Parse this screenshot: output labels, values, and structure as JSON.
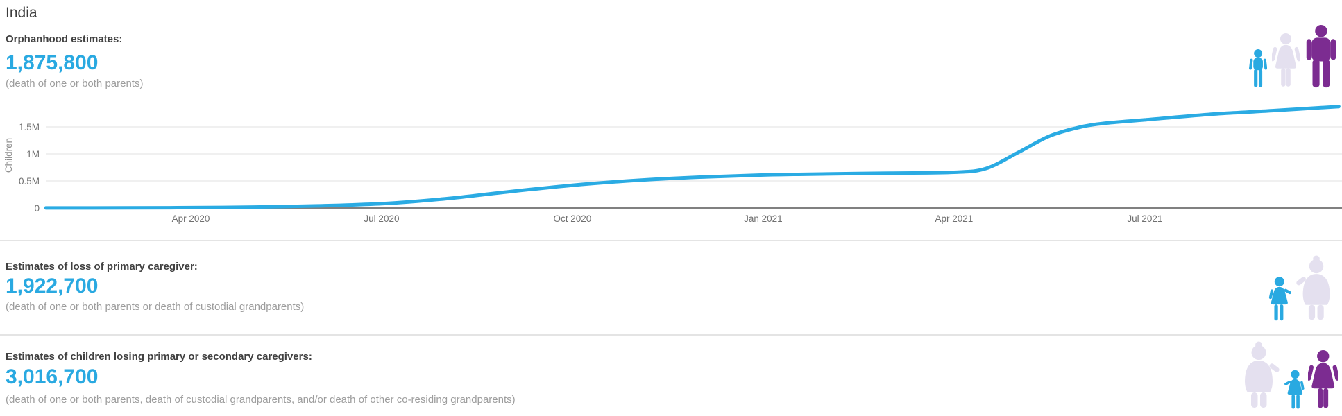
{
  "title": "India",
  "sections": [
    {
      "label": "Orphanhood estimates:",
      "value": "1,875,800",
      "description": "(death of one or both parents)",
      "icons": [
        "child",
        "adult-woman",
        "adult-man"
      ]
    },
    {
      "label": "Estimates of loss of primary caregiver:",
      "value": "1,922,700",
      "description": "(death of one or both parents or death of custodial grandparents)",
      "icons": [
        "child-holding-hand",
        "grandparent"
      ]
    },
    {
      "label": "Estimates of children losing primary or secondary caregivers:",
      "value": "3,016,700",
      "description": "(death of one or both parents, death of custodial grandparents, and/or death of other co-residing grandparents)",
      "icons": [
        "grandparent",
        "child-holding-hand",
        "adult-woman"
      ]
    }
  ],
  "chart_data": {
    "type": "line",
    "title": "",
    "xlabel": "",
    "ylabel": "Children",
    "grid": "horizontal",
    "legend": "none",
    "x_unit": "months since Jan 2020",
    "xlim": [
      0,
      21.1
    ],
    "ylim": [
      0,
      1.93
    ],
    "x_ticks": [
      {
        "t": 3,
        "label": "Apr 2020"
      },
      {
        "t": 6,
        "label": "Jul 2020"
      },
      {
        "t": 9,
        "label": "Oct 2020"
      },
      {
        "t": 12,
        "label": "Jan 2021"
      },
      {
        "t": 15,
        "label": "Apr 2021"
      },
      {
        "t": 18,
        "label": "Jul 2021"
      }
    ],
    "y_ticks": [
      {
        "v": 0,
        "label": "0"
      },
      {
        "v": 0.5,
        "label": "0.5M"
      },
      {
        "v": 1,
        "label": "1M"
      },
      {
        "v": 1.5,
        "label": "1.5M"
      }
    ],
    "series": [
      {
        "name": "Orphanhood estimates (children, millions)",
        "color": "#2aabe3",
        "points": [
          [
            0.72,
            0.001
          ],
          [
            2,
            0.002
          ],
          [
            3,
            0.008
          ],
          [
            4,
            0.018
          ],
          [
            5,
            0.04
          ],
          [
            6,
            0.08
          ],
          [
            7,
            0.17
          ],
          [
            8,
            0.3
          ],
          [
            9,
            0.42
          ],
          [
            10,
            0.51
          ],
          [
            11,
            0.57
          ],
          [
            12,
            0.61
          ],
          [
            13,
            0.63
          ],
          [
            14,
            0.645
          ],
          [
            15,
            0.66
          ],
          [
            15.5,
            0.73
          ],
          [
            16,
            1.02
          ],
          [
            16.5,
            1.33
          ],
          [
            17,
            1.5
          ],
          [
            17.4,
            1.57
          ],
          [
            18,
            1.63
          ],
          [
            19,
            1.73
          ],
          [
            20,
            1.8
          ],
          [
            21.05,
            1.876
          ]
        ]
      }
    ],
    "final_value_label": "1,875,800"
  },
  "colors": {
    "accent_blue": "#29a9e1",
    "chart_line": "#2aabe3",
    "child_blue": "#29a9e1",
    "lavender": "#e4e0ef",
    "purple": "#7c2c91",
    "axis_text": "#6f6f6f",
    "axis_title": "#8f8f8f",
    "grid_line": "#ececec",
    "axis_line": "#808080"
  }
}
